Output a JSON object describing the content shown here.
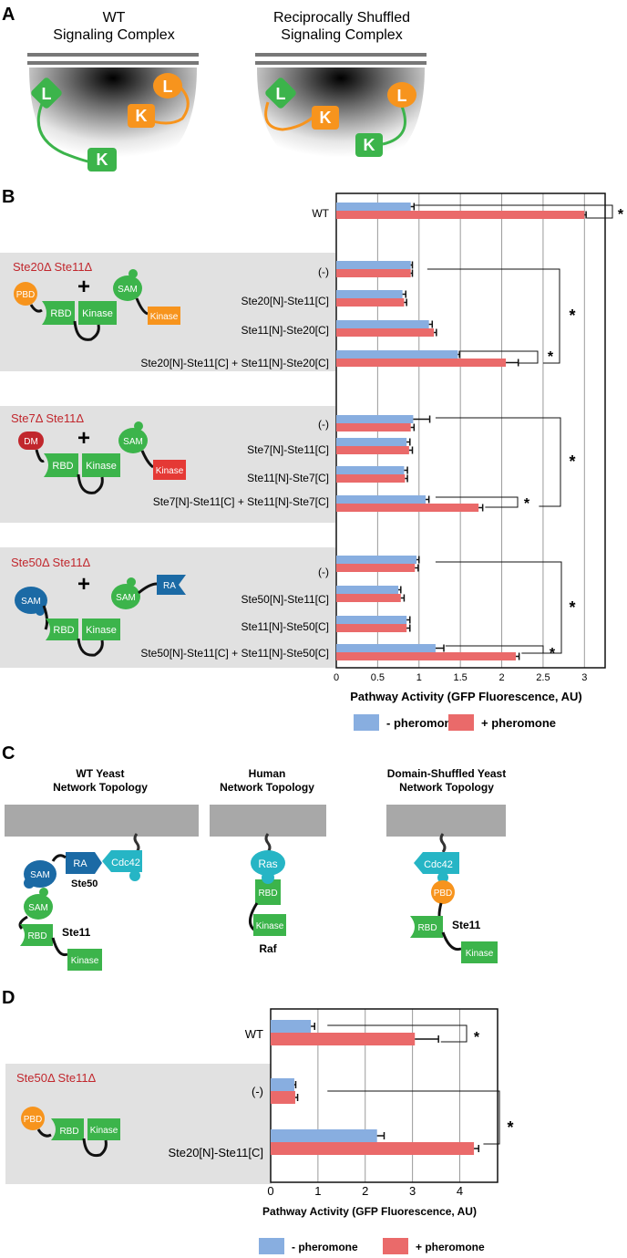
{
  "panel_letters": [
    "A",
    "B",
    "C",
    "D"
  ],
  "panelA": {
    "left_title": [
      "WT",
      "Signaling Complex"
    ],
    "right_title": [
      "Reciprocally Shuffled",
      "Signaling Complex"
    ],
    "node_L": "L",
    "node_K": "K",
    "colors": {
      "green": "#3cb44b",
      "orange": "#f7941d",
      "membrane": "#777777"
    }
  },
  "panelB": {
    "groups": [
      {
        "label": "Ste20Δ Ste11Δ",
        "domains": [
          "PBD",
          "RBD",
          "Kinase",
          "SAM",
          "Kinase"
        ],
        "plus": "+"
      },
      {
        "label": "Ste7Δ Ste11Δ",
        "domains": [
          "DM",
          "RBD",
          "Kinase",
          "SAM",
          "Kinase"
        ],
        "plus": "+"
      },
      {
        "label": "Ste50Δ Ste11Δ",
        "domains": [
          "SAM",
          "RBD",
          "Kinase",
          "SAM",
          "RA"
        ],
        "plus": "+"
      }
    ],
    "asterisk": "*"
  },
  "panelC": {
    "titles": [
      [
        "WT Yeast",
        "Network Topology"
      ],
      [
        "Human",
        "Network Topology"
      ],
      [
        "Domain-Shuffled Yeast",
        "Network Topology"
      ]
    ],
    "wt": {
      "sam1": "SAM",
      "ra": "RA",
      "cdc42": "Cdc42",
      "ste50": "Ste50",
      "sam2": "SAM",
      "rbd": "RBD",
      "ste11": "Ste11",
      "kinase": "Kinase"
    },
    "human": {
      "ras": "Ras",
      "rbd": "RBD",
      "kinase": "Kinase",
      "raf": "Raf"
    },
    "shuffled": {
      "cdc42": "Cdc42",
      "pbd": "PBD",
      "rbd": "RBD",
      "ste11": "Ste11",
      "kinase": "Kinase"
    }
  },
  "panelD": {
    "group_label": "Ste50Δ Ste11Δ",
    "domains": [
      "PBD",
      "RBD",
      "Kinase"
    ],
    "asterisk": "*"
  },
  "chart_data": [
    {
      "type": "bar",
      "orientation": "horizontal",
      "categories": [
        "WT",
        "(-)",
        "Ste20[N]-Ste11[C]",
        "Ste11[N]-Ste20[C]",
        "Ste20[N]-Ste11[C] + Ste11[N]-Ste20[C]",
        "(-)",
        "Ste7[N]-Ste11[C]",
        "Ste11[N]-Ste7[C]",
        "Ste7[N]-Ste11[C] + Ste11[N]-Ste7[C]",
        "(-)",
        "Ste50[N]-Ste11[C]",
        "Ste11[N]-Ste50[C]",
        "Ste50[N]-Ste11[C] + Ste11[N]-Ste50[C]"
      ],
      "series": [
        {
          "name": "- pheromone",
          "color": "#88aee0",
          "values": [
            0.9,
            0.9,
            0.8,
            1.12,
            1.47,
            0.93,
            0.85,
            0.82,
            1.08,
            0.97,
            0.75,
            0.85,
            1.2
          ],
          "errors": [
            0.04,
            0.02,
            0.04,
            0.04,
            0.02,
            0.2,
            0.04,
            0.04,
            0.04,
            0.03,
            0.03,
            0.04,
            0.1
          ]
        },
        {
          "name": "+ pheromone",
          "color": "#ea6a6a",
          "values": [
            3.0,
            0.9,
            0.82,
            1.18,
            2.05,
            0.9,
            0.88,
            0.83,
            1.72,
            0.95,
            0.78,
            0.85,
            2.17
          ],
          "errors": [
            0.02,
            0.02,
            0.03,
            0.03,
            0.15,
            0.04,
            0.04,
            0.03,
            0.05,
            0.04,
            0.04,
            0.04,
            0.04
          ]
        }
      ],
      "xlabel": "Pathway Activity (GFP Fluorescence, AU)",
      "xlim": [
        0,
        3.25
      ],
      "ticks": [
        "0",
        "0.5",
        "1",
        "1.5",
        "2",
        "2.5",
        "3"
      ],
      "grid": true,
      "legend_position": "bottom"
    },
    {
      "type": "bar",
      "orientation": "horizontal",
      "categories": [
        "WT",
        "(-)",
        "Ste20[N]-Ste11[C]"
      ],
      "series": [
        {
          "name": "- pheromone",
          "color": "#88aee0",
          "values": [
            0.85,
            0.5,
            2.25
          ],
          "errors": [
            0.08,
            0.03,
            0.15
          ]
        },
        {
          "name": "+ pheromone",
          "color": "#ea6a6a",
          "values": [
            3.05,
            0.52,
            4.3
          ],
          "errors": [
            0.5,
            0.05,
            0.1
          ]
        }
      ],
      "xlabel": "Pathway Activity (GFP Fluorescence, AU)",
      "xlim": [
        0,
        4.8
      ],
      "ticks": [
        "0",
        "1",
        "2",
        "3",
        "4"
      ],
      "grid": true,
      "legend_position": "bottom"
    }
  ]
}
